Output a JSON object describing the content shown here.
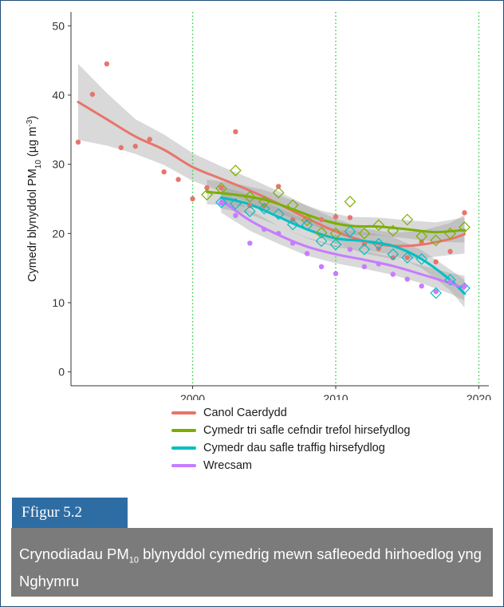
{
  "chart_data": {
    "type": "scatter",
    "ylabel_parts": [
      "Cymedr blynyddol PM",
      "10",
      " (µg m",
      "-3",
      ")"
    ],
    "xlim": [
      1991.5,
      2020.7
    ],
    "ylim": [
      -2,
      52
    ],
    "xticks": [
      2000,
      2010,
      2020
    ],
    "yticks": [
      0,
      10,
      20,
      30,
      40,
      50
    ],
    "vlines": [
      2000,
      2010,
      2020
    ],
    "grid": false,
    "legend_position": "bottom",
    "series": [
      {
        "name": "Canol Caerdydd",
        "color": "#e8756c",
        "marker": "circle",
        "points": [
          [
            1992,
            33.2
          ],
          [
            1993,
            40.1
          ],
          [
            1994,
            44.5
          ],
          [
            1995,
            32.4
          ],
          [
            1996,
            32.6
          ],
          [
            1997,
            33.6
          ],
          [
            1998,
            28.9
          ],
          [
            1999,
            27.8
          ],
          [
            2000,
            25.0
          ],
          [
            2001,
            26.6
          ],
          [
            2002,
            26.6
          ],
          [
            2003,
            34.7
          ],
          [
            2004,
            24.0
          ],
          [
            2005,
            24.0
          ],
          [
            2006,
            26.8
          ],
          [
            2007,
            22.0
          ],
          [
            2008,
            22.0
          ],
          [
            2009,
            22.0
          ],
          [
            2010,
            22.4
          ],
          [
            2011,
            22.3
          ],
          [
            2012,
            18.5
          ],
          [
            2013,
            17.8
          ],
          [
            2014,
            16.5
          ],
          [
            2015,
            16.5
          ],
          [
            2016,
            18.8
          ],
          [
            2017,
            15.9
          ],
          [
            2018,
            17.4
          ],
          [
            2019,
            23.0
          ]
        ],
        "smooth": [
          [
            1992,
            39
          ],
          [
            1994,
            36.5
          ],
          [
            1996,
            34
          ],
          [
            1998,
            32.1
          ],
          [
            2000,
            29.6
          ],
          [
            2002,
            27.9
          ],
          [
            2004,
            26.2
          ],
          [
            2006,
            24.3
          ],
          [
            2008,
            22.2
          ],
          [
            2010,
            20.3
          ],
          [
            2012,
            18.9
          ],
          [
            2014,
            18.2
          ],
          [
            2016,
            18.4
          ],
          [
            2018,
            19.2
          ],
          [
            2019,
            19.9
          ]
        ],
        "band": [
          5.5,
          3.8,
          2.5,
          2.2,
          2.0,
          1.8,
          1.8,
          1.8,
          1.8,
          1.8,
          1.8,
          1.9,
          2.0,
          2.3,
          2.8
        ]
      },
      {
        "name": "Cymedr tri safle cefndir trefol hirsefydlog",
        "color": "#7cae00",
        "marker": "diamond",
        "points": [
          [
            2001,
            25.6
          ],
          [
            2002,
            26.5
          ],
          [
            2003,
            29.1
          ],
          [
            2004,
            25.3
          ],
          [
            2005,
            24.6
          ],
          [
            2006,
            25.9
          ],
          [
            2007,
            24.1
          ],
          [
            2008,
            21.9
          ],
          [
            2009,
            20.1
          ],
          [
            2010,
            20.0
          ],
          [
            2011,
            24.6
          ],
          [
            2012,
            20.0
          ],
          [
            2013,
            21.2
          ],
          [
            2014,
            20.4
          ],
          [
            2015,
            22.0
          ],
          [
            2016,
            19.6
          ],
          [
            2017,
            19.0
          ],
          [
            2018,
            20.0
          ],
          [
            2019,
            20.9
          ]
        ],
        "smooth": [
          [
            2001,
            26
          ],
          [
            2003,
            25.6
          ],
          [
            2005,
            24.9
          ],
          [
            2007,
            23.5
          ],
          [
            2009,
            22.0
          ],
          [
            2011,
            21.1
          ],
          [
            2013,
            21.0
          ],
          [
            2015,
            20.6
          ],
          [
            2017,
            20.2
          ],
          [
            2019,
            20.5
          ]
        ],
        "band": [
          1.8,
          1.6,
          1.4,
          1.3,
          1.3,
          1.3,
          1.3,
          1.3,
          1.4,
          1.8
        ]
      },
      {
        "name": "Cymedr dau safle traffig hirsefydlog",
        "color": "#00bfc4",
        "marker": "diamond",
        "points": [
          [
            2002,
            24.5
          ],
          [
            2003,
            24.3
          ],
          [
            2004,
            23.2
          ],
          [
            2005,
            23.6
          ],
          [
            2006,
            22.8
          ],
          [
            2007,
            21.3
          ],
          [
            2008,
            21.2
          ],
          [
            2009,
            18.9
          ],
          [
            2010,
            18.4
          ],
          [
            2011,
            20.3
          ],
          [
            2012,
            17.7
          ],
          [
            2013,
            18.5
          ],
          [
            2014,
            17.0
          ],
          [
            2015,
            16.5
          ],
          [
            2016,
            16.3
          ],
          [
            2017,
            11.4
          ],
          [
            2018,
            13.3
          ],
          [
            2019,
            12.1
          ]
        ],
        "smooth": [
          [
            2002,
            25.2
          ],
          [
            2004,
            24.2
          ],
          [
            2006,
            22.4
          ],
          [
            2008,
            20.6
          ],
          [
            2010,
            19.3
          ],
          [
            2012,
            18.9
          ],
          [
            2014,
            18.2
          ],
          [
            2016,
            16.3
          ],
          [
            2018,
            13.3
          ],
          [
            2019,
            11.3
          ]
        ],
        "band": [
          1.6,
          1.4,
          1.3,
          1.3,
          1.3,
          1.3,
          1.3,
          1.3,
          1.5,
          2.0
        ]
      },
      {
        "name": "Wrecsam",
        "color": "#c77cff",
        "marker": "circle",
        "points": [
          [
            2002,
            24.4
          ],
          [
            2003,
            22.6
          ],
          [
            2004,
            18.6
          ],
          [
            2005,
            20.6
          ],
          [
            2006,
            20.0
          ],
          [
            2007,
            18.6
          ],
          [
            2008,
            17.1
          ],
          [
            2009,
            15.2
          ],
          [
            2010,
            14.2
          ],
          [
            2011,
            17.7
          ],
          [
            2012,
            15.2
          ],
          [
            2013,
            15.6
          ],
          [
            2014,
            14.1
          ],
          [
            2015,
            13.4
          ],
          [
            2016,
            12.4
          ],
          [
            2017,
            11.6
          ],
          [
            2018,
            13.0
          ],
          [
            2019,
            12.4
          ]
        ],
        "smooth": [
          [
            2002,
            24.8
          ],
          [
            2004,
            21.9
          ],
          [
            2006,
            19.8
          ],
          [
            2008,
            18.1
          ],
          [
            2010,
            17.0
          ],
          [
            2012,
            16.2
          ],
          [
            2014,
            15.3
          ],
          [
            2016,
            14.1
          ],
          [
            2018,
            12.8
          ],
          [
            2019,
            12.1
          ]
        ],
        "band": [
          1.8,
          1.5,
          1.3,
          1.3,
          1.3,
          1.3,
          1.3,
          1.3,
          1.5,
          1.8
        ]
      }
    ]
  },
  "figure": {
    "label": "Ffigur 5.2"
  },
  "caption": {
    "before": "Crynodiadau  PM",
    "sub": "10",
    "after": " blynyddol cymedrig mewn safleoedd hirhoedlog yng Nghymru"
  }
}
